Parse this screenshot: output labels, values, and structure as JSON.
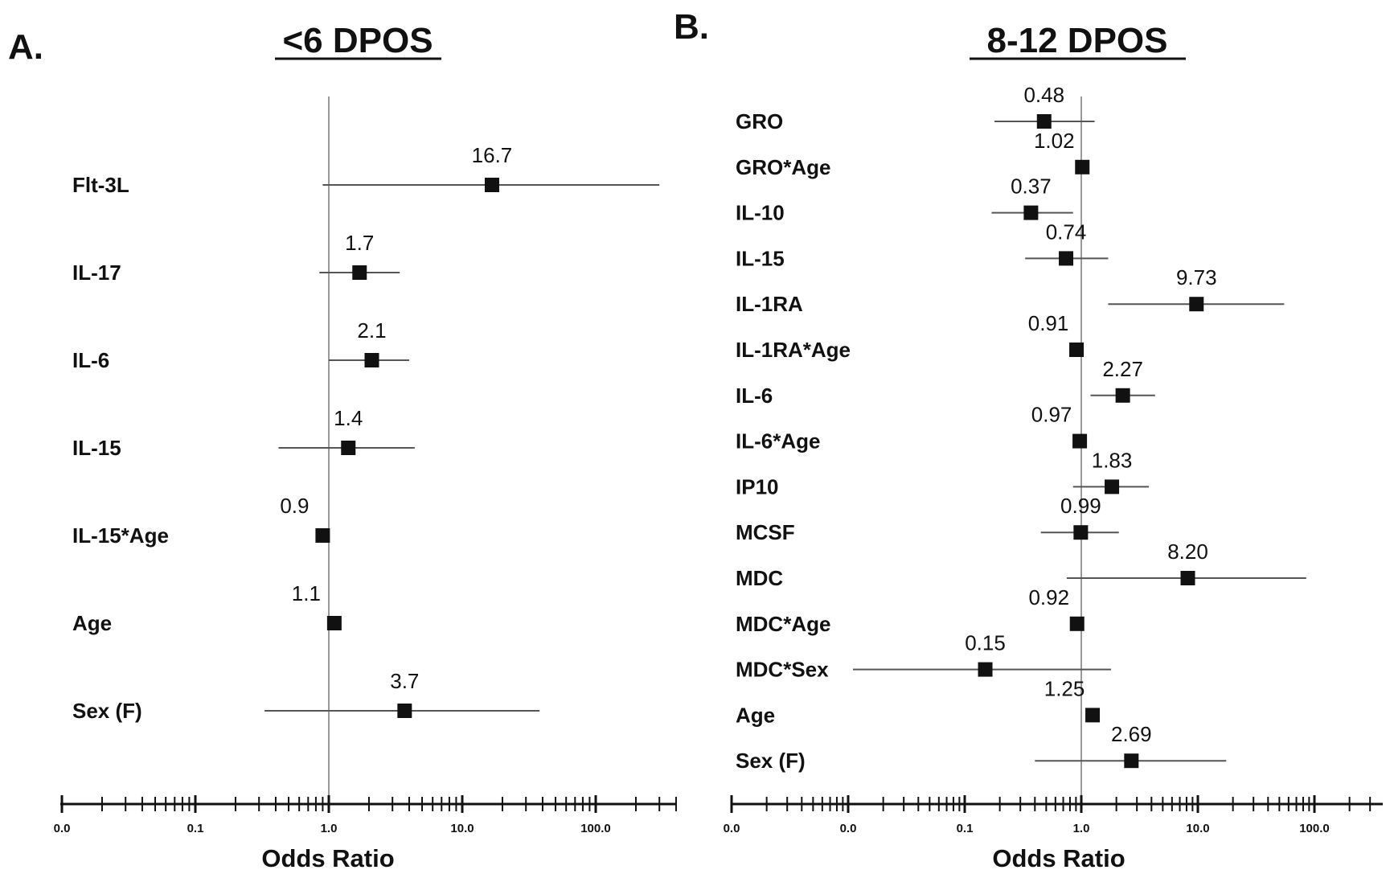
{
  "chart_data": [
    {
      "type": "forest",
      "panel": "A.",
      "title": "<6 DPOS",
      "xlabel": "Odds Ratio",
      "xscale": "log",
      "xlim": [
        0.01,
        400
      ],
      "reference_line": 1.0,
      "tick_labels": [
        {
          "value": 0.01,
          "label": "0.0"
        },
        {
          "value": 0.1,
          "label": "0.1"
        },
        {
          "value": 1,
          "label": "1.0"
        },
        {
          "value": 10,
          "label": "10.0"
        },
        {
          "value": 100,
          "label": "100.0"
        }
      ],
      "rows": [
        {
          "label": "Flt-3L",
          "or": 16.7,
          "or_label": "16.7",
          "ci": [
            0.9,
            300
          ]
        },
        {
          "label": "IL-17",
          "or": 1.7,
          "or_label": "1.7",
          "ci": [
            0.85,
            3.4
          ]
        },
        {
          "label": "IL-6",
          "or": 2.1,
          "or_label": "2.1",
          "ci": [
            1.0,
            4.0
          ]
        },
        {
          "label": "IL-15",
          "or": 1.4,
          "or_label": "1.4",
          "ci": [
            0.42,
            4.4
          ]
        },
        {
          "label": "IL-15*Age",
          "or": 0.9,
          "or_label": "0.9",
          "ci": null
        },
        {
          "label": "Age",
          "or": 1.1,
          "or_label": "1.1",
          "ci": null
        },
        {
          "label": "Sex (F)",
          "or": 3.7,
          "or_label": "3.7",
          "ci": [
            0.33,
            38
          ]
        }
      ]
    },
    {
      "type": "forest",
      "panel": "B.",
      "title": "8-12 DPOS",
      "xlabel": "Odds Ratio",
      "xscale": "log",
      "xlim": [
        0.001,
        400
      ],
      "reference_line": 1.0,
      "tick_labels": [
        {
          "value": 0.001,
          "label": "0.0"
        },
        {
          "value": 0.01,
          "label": "0.0"
        },
        {
          "value": 0.1,
          "label": "0.1"
        },
        {
          "value": 1,
          "label": "1.0"
        },
        {
          "value": 10,
          "label": "10.0"
        },
        {
          "value": 100,
          "label": "100.0"
        }
      ],
      "rows": [
        {
          "label": "GRO",
          "or": 0.48,
          "or_label": "0.48",
          "ci": [
            0.18,
            1.3
          ]
        },
        {
          "label": "GRO*Age",
          "or": 1.02,
          "or_label": "1.02",
          "ci": null
        },
        {
          "label": "IL-10",
          "or": 0.37,
          "or_label": "0.37",
          "ci": [
            0.17,
            0.85
          ]
        },
        {
          "label": "IL-15",
          "or": 0.74,
          "or_label": "0.74",
          "ci": [
            0.33,
            1.7
          ]
        },
        {
          "label": "IL-1RA",
          "or": 9.73,
          "or_label": "9.73",
          "ci": [
            1.7,
            55
          ]
        },
        {
          "label": "IL-1RA*Age",
          "or": 0.91,
          "or_label": "0.91",
          "ci": null
        },
        {
          "label": "IL-6",
          "or": 2.27,
          "or_label": "2.27",
          "ci": [
            1.2,
            4.3
          ]
        },
        {
          "label": "IL-6*Age",
          "or": 0.97,
          "or_label": "0.97",
          "ci": null
        },
        {
          "label": "IP10",
          "or": 1.83,
          "or_label": "1.83",
          "ci": [
            0.85,
            3.8
          ]
        },
        {
          "label": "MCSF",
          "or": 0.99,
          "or_label": "0.99",
          "ci": [
            0.45,
            2.1
          ]
        },
        {
          "label": "MDC",
          "or": 8.2,
          "or_label": "8.20",
          "ci": [
            0.75,
            85
          ]
        },
        {
          "label": "MDC*Age",
          "or": 0.92,
          "or_label": "0.92",
          "ci": null
        },
        {
          "label": "MDC*Sex",
          "or": 0.15,
          "or_label": "0.15",
          "ci": [
            0.011,
            1.8
          ]
        },
        {
          "label": "Age",
          "or": 1.25,
          "or_label": "1.25",
          "ci": null
        },
        {
          "label": "Sex (F)",
          "or": 2.69,
          "or_label": "2.69",
          "ci": [
            0.4,
            17.5
          ]
        }
      ]
    }
  ]
}
